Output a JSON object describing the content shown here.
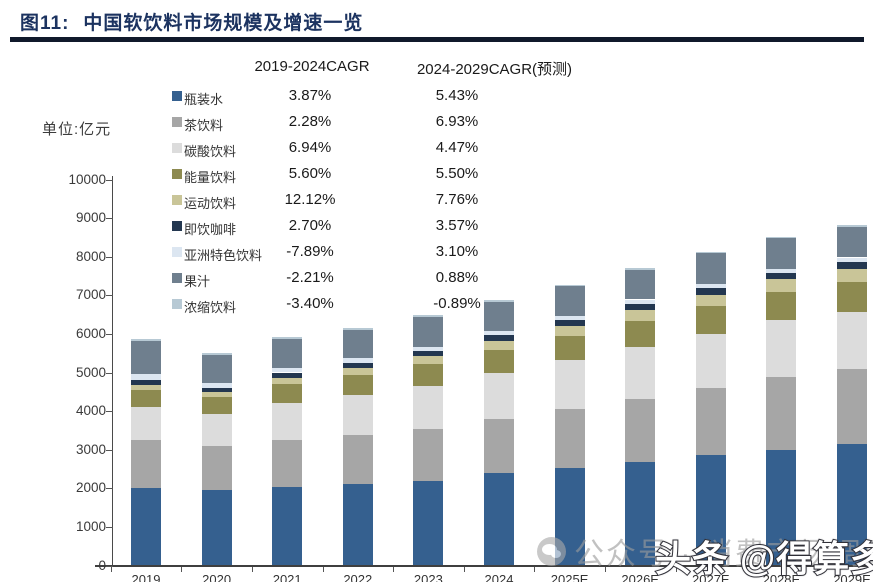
{
  "title": {
    "prefix": "图11:",
    "text": "中国软饮料市场规模及增速一览"
  },
  "unit_label": "单位:亿元",
  "watermarks": {
    "wechat": {
      "icon": "wechat-bubble-icon",
      "text": "公众号 · 消费市场调研"
    },
    "toutiao": {
      "text": "头条 @得算多咨询"
    }
  },
  "colors": {
    "title": "#1c3360",
    "title_rule": "#10192b",
    "axis": "#3f3f3f"
  },
  "chart_data": {
    "type": "bar",
    "stacked": true,
    "title": "中国软饮料市场规模及增速一览",
    "unit": "亿元",
    "grid": false,
    "legend_position": "top-left-table",
    "ylim": [
      0,
      10000
    ],
    "ytick_step": 1000,
    "categories": [
      "2019",
      "2020",
      "2021",
      "2022",
      "2023",
      "2024",
      "2025E",
      "2026E",
      "2027E",
      "2028E",
      "2029E"
    ],
    "legend_table": {
      "col1_header": "2019-2024CAGR",
      "col2_header": "2024-2029CAGR(预测)"
    },
    "series": [
      {
        "name": "瓶装水",
        "color": "#35608f",
        "cagr_2019_2024": "3.87%",
        "cagr_2024_2029": "5.43%",
        "values": [
          2000,
          1960,
          2040,
          2100,
          2200,
          2400,
          2530,
          2680,
          2850,
          3000,
          3140
        ]
      },
      {
        "name": "茶饮料",
        "color": "#a6a6a6",
        "cagr_2019_2024": "2.28%",
        "cagr_2024_2029": "6.93%",
        "values": [
          1240,
          1130,
          1220,
          1270,
          1340,
          1390,
          1520,
          1640,
          1750,
          1880,
          1940
        ]
      },
      {
        "name": "碳酸饮料",
        "color": "#dcdcdc",
        "cagr_2019_2024": "6.94%",
        "cagr_2024_2029": "4.47%",
        "values": [
          860,
          830,
          950,
          1040,
          1120,
          1200,
          1280,
          1350,
          1410,
          1470,
          1490
        ]
      },
      {
        "name": "能量饮料",
        "color": "#8d8a50",
        "cagr_2019_2024": "5.60%",
        "cagr_2024_2029": "5.50%",
        "values": [
          445,
          440,
          490,
          520,
          550,
          585,
          620,
          665,
          700,
          730,
          765
        ]
      },
      {
        "name": "运动饮料",
        "color": "#c9c598",
        "cagr_2019_2024": "12.12%",
        "cagr_2024_2029": "7.76%",
        "values": [
          135,
          130,
          165,
          185,
          210,
          240,
          260,
          290,
          310,
          330,
          350
        ]
      },
      {
        "name": "即饮咖啡",
        "color": "#233750",
        "cagr_2019_2024": "2.70%",
        "cagr_2024_2029": "3.57%",
        "values": [
          130,
          120,
          135,
          140,
          145,
          150,
          155,
          160,
          165,
          170,
          178
        ]
      },
      {
        "name": "亚洲特色饮料",
        "color": "#dce6f1",
        "cagr_2019_2024": "-7.89%",
        "cagr_2024_2029": "3.10%",
        "values": [
          150,
          130,
          120,
          110,
          105,
          100,
          103,
          106,
          109,
          112,
          116
        ]
      },
      {
        "name": "果汁",
        "color": "#6f7f8e",
        "cagr_2019_2024": "-2.21%",
        "cagr_2024_2029": "0.88%",
        "values": [
          850,
          720,
          760,
          740,
          770,
          760,
          765,
          775,
          790,
          790,
          795
        ]
      },
      {
        "name": "浓缩饮料",
        "color": "#b7c9d4",
        "cagr_2019_2024": "-3.40%",
        "cagr_2024_2029": "-0.89%",
        "values": [
          50,
          48,
          47,
          45,
          44,
          42,
          42,
          41,
          41,
          40,
          40
        ]
      }
    ]
  }
}
